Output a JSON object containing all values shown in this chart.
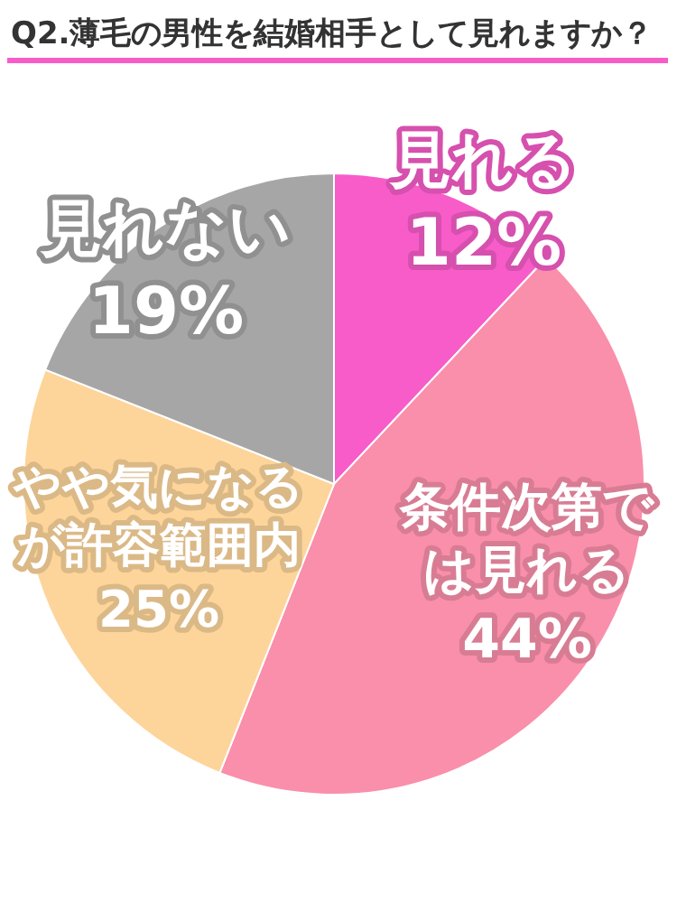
{
  "chart_data": {
    "type": "pie",
    "title": "Q2.薄毛の男性を結婚相手として見れますか？",
    "categories": [
      "見れる",
      "条件次第では見れる",
      "やや気になるが許容範囲内",
      "見れない"
    ],
    "values": [
      12,
      44,
      25,
      19
    ],
    "value_labels": [
      "12%",
      "44%",
      "25%",
      "19%"
    ],
    "colors": [
      "#f75cc9",
      "#f98fab",
      "#fdd59a",
      "#a6a6a6"
    ]
  }
}
